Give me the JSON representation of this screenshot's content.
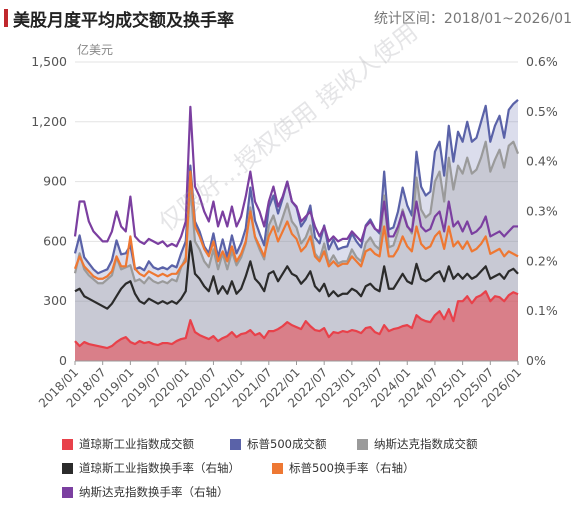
{
  "header": {
    "title": "美股月度平均成交额及换手率",
    "subtitle": "统计区间：2018/01~2026/01"
  },
  "watermark": "仅限好…授权使用 接收人使用",
  "colors": {
    "dow_amount": "#e8414a",
    "sp500_amount": "#5a62a8",
    "nasdaq_amount": "#9a9a9a",
    "dow_turnover": "#2b2b2b",
    "sp500_turnover": "#ee7833",
    "nasdaq_turnover": "#7b3fa0",
    "title_accent": "#c0282d"
  },
  "chart_data": {
    "type": "area",
    "title": "美股月度平均成交额及换手率",
    "subtitle": "统计区间：2018/01~2026/01",
    "left_axis_unit": "亿美元",
    "ylim_left": [
      0,
      1500
    ],
    "yticks_left": [
      "0",
      "300",
      "600",
      "900",
      "1,200",
      "1,500"
    ],
    "ylim_right": [
      0,
      0.6
    ],
    "yticks_right": [
      "0%",
      "0.1%",
      "0.2%",
      "0.3%",
      "0.4%",
      "0.5%",
      "0.6%"
    ],
    "xtick_labels": [
      "2018/01",
      "2018/07",
      "2019/01",
      "2019/07",
      "2020/01",
      "2020/07",
      "2021/01",
      "2021/07",
      "2022/01",
      "2022/07",
      "2023/01",
      "2023/07",
      "2024/01",
      "2024/07",
      "2025/01",
      "2025/07",
      "2026/01"
    ],
    "x_start": "2018/01",
    "x_end": "2026/01",
    "grid": true,
    "legend_position": "bottom",
    "series": [
      {
        "name": "道琼斯工业指数成交额",
        "axis": "left",
        "kind": "area",
        "values": [
          100,
          75,
          95,
          85,
          80,
          75,
          70,
          65,
          75,
          95,
          110,
          120,
          95,
          85,
          100,
          90,
          95,
          85,
          80,
          90,
          90,
          85,
          100,
          110,
          115,
          205,
          145,
          130,
          120,
          110,
          125,
          100,
          115,
          125,
          145,
          120,
          135,
          140,
          155,
          130,
          140,
          115,
          150,
          150,
          160,
          175,
          195,
          180,
          170,
          160,
          200,
          175,
          155,
          150,
          165,
          120,
          145,
          140,
          150,
          145,
          155,
          150,
          140,
          165,
          170,
          145,
          135,
          180,
          150,
          160,
          165,
          175,
          180,
          165,
          230,
          210,
          200,
          195,
          230,
          250,
          210,
          260,
          200,
          300,
          300,
          325,
          290,
          320,
          330,
          350,
          300,
          325,
          320,
          300,
          330,
          345,
          335
        ]
      },
      {
        "name": "标普500成交额",
        "axis": "left",
        "kind": "area",
        "values": [
          540,
          630,
          520,
          490,
          460,
          440,
          450,
          460,
          505,
          605,
          535,
          540,
          580,
          460,
          470,
          455,
          500,
          470,
          460,
          470,
          460,
          480,
          470,
          540,
          600,
          980,
          700,
          650,
          575,
          540,
          640,
          520,
          610,
          520,
          630,
          540,
          590,
          665,
          870,
          705,
          640,
          580,
          770,
          830,
          740,
          815,
          900,
          800,
          770,
          675,
          710,
          780,
          620,
          590,
          680,
          560,
          610,
          560,
          570,
          575,
          640,
          600,
          570,
          680,
          710,
          665,
          640,
          950,
          660,
          670,
          750,
          870,
          780,
          730,
          1050,
          875,
          830,
          850,
          1050,
          1100,
          930,
          1180,
          1000,
          1150,
          1100,
          1200,
          1100,
          1120,
          1200,
          1280,
          1100,
          1180,
          1230,
          1120,
          1260,
          1290,
          1310
        ]
      },
      {
        "name": "纳斯达克指数成交额",
        "axis": "left",
        "kind": "area",
        "values": [
          440,
          540,
          460,
          430,
          410,
          390,
          390,
          410,
          430,
          520,
          460,
          470,
          480,
          400,
          410,
          390,
          420,
          400,
          390,
          400,
          390,
          410,
          400,
          470,
          520,
          880,
          600,
          560,
          500,
          470,
          560,
          460,
          540,
          460,
          550,
          480,
          520,
          590,
          770,
          620,
          560,
          510,
          680,
          730,
          650,
          720,
          790,
          700,
          670,
          590,
          620,
          680,
          540,
          510,
          590,
          490,
          530,
          490,
          500,
          500,
          560,
          520,
          500,
          590,
          620,
          580,
          560,
          830,
          570,
          580,
          650,
          760,
          680,
          640,
          920,
          760,
          720,
          740,
          900,
          950,
          800,
          1020,
          860,
          980,
          940,
          1020,
          940,
          960,
          1020,
          1100,
          950,
          1010,
          1060,
          970,
          1080,
          1100,
          1040
        ]
      },
      {
        "name": "道琼斯工业指数换手率（右轴）",
        "axis": "right",
        "kind": "line",
        "values": [
          0.14,
          0.145,
          0.13,
          0.125,
          0.12,
          0.115,
          0.11,
          0.105,
          0.115,
          0.13,
          0.145,
          0.155,
          0.16,
          0.135,
          0.12,
          0.115,
          0.125,
          0.12,
          0.115,
          0.12,
          0.115,
          0.12,
          0.115,
          0.125,
          0.14,
          0.24,
          0.175,
          0.165,
          0.15,
          0.14,
          0.17,
          0.135,
          0.15,
          0.135,
          0.16,
          0.135,
          0.145,
          0.17,
          0.2,
          0.165,
          0.155,
          0.14,
          0.175,
          0.18,
          0.16,
          0.175,
          0.19,
          0.175,
          0.17,
          0.155,
          0.165,
          0.18,
          0.15,
          0.14,
          0.155,
          0.13,
          0.14,
          0.13,
          0.135,
          0.135,
          0.145,
          0.14,
          0.13,
          0.15,
          0.155,
          0.145,
          0.14,
          0.19,
          0.145,
          0.145,
          0.16,
          0.175,
          0.16,
          0.155,
          0.195,
          0.165,
          0.16,
          0.165,
          0.175,
          0.18,
          0.16,
          0.19,
          0.165,
          0.175,
          0.165,
          0.175,
          0.165,
          0.17,
          0.18,
          0.19,
          0.165,
          0.17,
          0.175,
          0.165,
          0.18,
          0.185,
          0.175
        ]
      },
      {
        "name": "标普500换手率（右轴）",
        "axis": "right",
        "kind": "line",
        "values": [
          0.185,
          0.21,
          0.19,
          0.18,
          0.17,
          0.165,
          0.165,
          0.17,
          0.18,
          0.21,
          0.19,
          0.19,
          0.25,
          0.185,
          0.175,
          0.17,
          0.18,
          0.175,
          0.17,
          0.175,
          0.17,
          0.175,
          0.175,
          0.19,
          0.2,
          0.38,
          0.27,
          0.25,
          0.225,
          0.21,
          0.24,
          0.2,
          0.22,
          0.2,
          0.23,
          0.2,
          0.215,
          0.24,
          0.3,
          0.25,
          0.23,
          0.21,
          0.25,
          0.27,
          0.24,
          0.26,
          0.28,
          0.255,
          0.245,
          0.22,
          0.23,
          0.25,
          0.21,
          0.2,
          0.22,
          0.19,
          0.2,
          0.19,
          0.195,
          0.195,
          0.21,
          0.2,
          0.19,
          0.22,
          0.225,
          0.215,
          0.21,
          0.27,
          0.21,
          0.21,
          0.225,
          0.25,
          0.23,
          0.22,
          0.27,
          0.235,
          0.225,
          0.23,
          0.25,
          0.26,
          0.225,
          0.27,
          0.23,
          0.24,
          0.225,
          0.24,
          0.22,
          0.225,
          0.235,
          0.25,
          0.215,
          0.22,
          0.225,
          0.21,
          0.22,
          0.215,
          0.21
        ]
      },
      {
        "name": "纳斯达克指数换手率（右轴）",
        "axis": "right",
        "kind": "line",
        "values": [
          0.25,
          0.32,
          0.32,
          0.28,
          0.26,
          0.25,
          0.24,
          0.24,
          0.26,
          0.3,
          0.27,
          0.26,
          0.33,
          0.25,
          0.24,
          0.235,
          0.245,
          0.24,
          0.235,
          0.24,
          0.23,
          0.235,
          0.23,
          0.25,
          0.28,
          0.51,
          0.35,
          0.33,
          0.3,
          0.28,
          0.32,
          0.27,
          0.3,
          0.27,
          0.31,
          0.27,
          0.29,
          0.33,
          0.38,
          0.32,
          0.3,
          0.27,
          0.32,
          0.35,
          0.31,
          0.33,
          0.36,
          0.32,
          0.31,
          0.28,
          0.29,
          0.3,
          0.27,
          0.25,
          0.27,
          0.24,
          0.25,
          0.24,
          0.245,
          0.245,
          0.26,
          0.25,
          0.24,
          0.27,
          0.28,
          0.265,
          0.26,
          0.32,
          0.25,
          0.25,
          0.27,
          0.3,
          0.27,
          0.26,
          0.32,
          0.27,
          0.26,
          0.265,
          0.29,
          0.3,
          0.26,
          0.32,
          0.27,
          0.28,
          0.26,
          0.28,
          0.255,
          0.26,
          0.27,
          0.29,
          0.25,
          0.255,
          0.26,
          0.25,
          0.26,
          0.27,
          0.27
        ]
      }
    ]
  },
  "legend": [
    {
      "label": "道琼斯工业指数成交额",
      "color": "#e8414a"
    },
    {
      "label": "标普500成交额",
      "color": "#5a62a8"
    },
    {
      "label": "纳斯达克指数成交额",
      "color": "#9a9a9a"
    },
    {
      "label": "道琼斯工业指数换手率（右轴）",
      "color": "#2b2b2b"
    },
    {
      "label": "标普500换手率（右轴）",
      "color": "#ee7833"
    },
    {
      "label": "纳斯达克指数换手率（右轴）",
      "color": "#7b3fa0"
    }
  ]
}
